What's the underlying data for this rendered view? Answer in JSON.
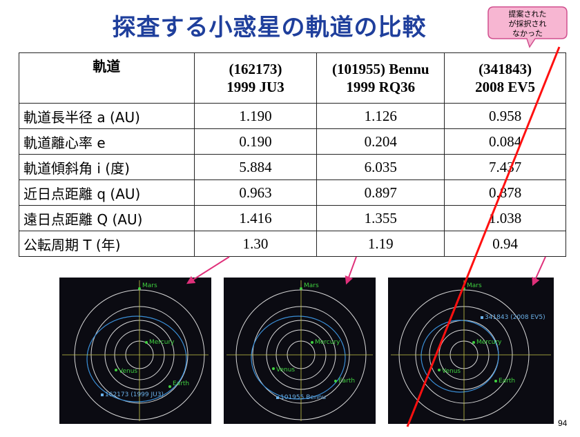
{
  "title": "探査する小惑星の軌道の比較",
  "callout": {
    "lines": [
      "提案された",
      "が採択され",
      "なかった"
    ]
  },
  "table": {
    "header": {
      "param": "軌道",
      "cols": [
        {
          "line1": "(162173)",
          "line2": "1999 JU3"
        },
        {
          "line1": "(101955) Bennu",
          "line2": "1999 RQ36"
        },
        {
          "line1": "(341843)",
          "line2": "2008 EV5"
        }
      ]
    },
    "rows": [
      {
        "label": "軌道長半径 a (AU)",
        "values": [
          "1.190",
          "1.126",
          "0.958"
        ]
      },
      {
        "label": "軌道離心率 e",
        "values": [
          "0.190",
          "0.204",
          "0.084"
        ]
      },
      {
        "label": "軌道傾斜角 i (度)",
        "values": [
          "5.884",
          "6.035",
          "7.437"
        ]
      },
      {
        "label": "近日点距離 q (AU)",
        "values": [
          "0.963",
          "0.897",
          "0.878"
        ]
      },
      {
        "label": "遠日点距離 Q (AU)",
        "values": [
          "1.416",
          "1.355",
          "1.038"
        ]
      },
      {
        "label": "公転周期  T (年)",
        "values": [
          "1.30",
          "1.19",
          "0.94"
        ]
      }
    ]
  },
  "orbit_panels": [
    {
      "planets": [
        "Mars",
        "Mercury",
        "Venus",
        "Earth"
      ],
      "asteroid_label": "162173 (1999 JU3)"
    },
    {
      "planets": [
        "Mars",
        "Mercury",
        "Venus",
        "Earth"
      ],
      "asteroid_label": "101955 Bennu"
    },
    {
      "planets": [
        "Mars",
        "Mercury",
        "Venus",
        "Earth"
      ],
      "asteroid_label": "341843 (2008 EV5)"
    }
  ],
  "colors": {
    "title": "#1f3f9c",
    "callout_fill": "#f7b6d2",
    "callout_border": "#d04f8e",
    "arrow": "#e0307a",
    "strike_line": "#ff1010",
    "planet_label": "#3fd13f",
    "asteroid_orbit": "#3a8fd8"
  },
  "page_number": "94"
}
